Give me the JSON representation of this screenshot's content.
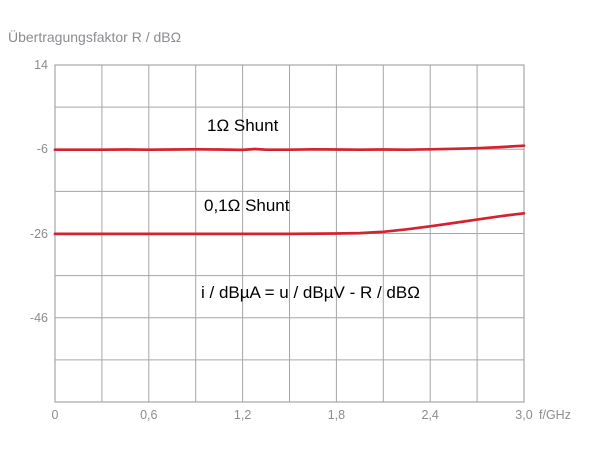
{
  "chart_data": {
    "type": "line",
    "title": "Übertragungsfaktor R / dBΩ",
    "xlabel": "f/GHz",
    "ylabel": "Übertragungsfaktor R / dBΩ",
    "xlim": [
      0,
      3.0
    ],
    "ylim": [
      -66,
      14
    ],
    "grid": true,
    "x_grid_step": 0.3,
    "y_grid_step": 10,
    "xticks": [
      {
        "v": 0,
        "label": "0"
      },
      {
        "v": 0.6,
        "label": "0,6"
      },
      {
        "v": 1.2,
        "label": "1,2"
      },
      {
        "v": 1.8,
        "label": "1,8"
      },
      {
        "v": 2.4,
        "label": "2,4"
      },
      {
        "v": 3.0,
        "label": "3,0"
      }
    ],
    "yticks": [
      {
        "v": 14,
        "label": "14"
      },
      {
        "v": -6,
        "label": "-6"
      },
      {
        "v": -26,
        "label": "-26"
      },
      {
        "v": -46,
        "label": "-46"
      }
    ],
    "legend_position": "none (inline text labels inside plot)",
    "series": [
      {
        "name": "1Ω Shunt",
        "color": "#d42330",
        "x": [
          0.0,
          0.15,
          0.3,
          0.45,
          0.6,
          0.75,
          0.9,
          1.05,
          1.2,
          1.28,
          1.35,
          1.5,
          1.65,
          1.8,
          1.95,
          2.1,
          2.25,
          2.4,
          2.55,
          2.7,
          2.85,
          3.0
        ],
        "y": [
          -6.1,
          -6.1,
          -6.1,
          -6.05,
          -6.1,
          -6.05,
          -6.0,
          -6.05,
          -6.15,
          -5.95,
          -6.1,
          -6.1,
          -6.0,
          -6.05,
          -6.1,
          -6.05,
          -6.1,
          -6.0,
          -5.9,
          -5.75,
          -5.5,
          -5.15
        ]
      },
      {
        "name": "0,1Ω Shunt",
        "color": "#d42330",
        "x": [
          0.0,
          0.3,
          0.6,
          0.9,
          1.2,
          1.5,
          1.8,
          1.95,
          2.1,
          2.25,
          2.4,
          2.55,
          2.7,
          2.85,
          3.0
        ],
        "y": [
          -26.1,
          -26.1,
          -26.1,
          -26.1,
          -26.1,
          -26.1,
          -26.0,
          -25.9,
          -25.6,
          -25.0,
          -24.3,
          -23.5,
          -22.7,
          -21.9,
          -21.2
        ]
      }
    ],
    "annotations": [
      {
        "text": "1Ω Shunt",
        "x": 0.97,
        "y": 1.5
      },
      {
        "text": "0,1Ω Shunt",
        "x": 0.95,
        "y": -17.5
      },
      {
        "text": "i / dBµA = u / dBµV - R / dBΩ",
        "x": 0.93,
        "y": -38.0
      }
    ]
  },
  "colors": {
    "background": "#ffffff",
    "grid": "#a3a6aa",
    "plot_border": "#a3a6aa",
    "axis_text": "#8a8d90",
    "annotation_text": "#000000",
    "curve": "#d42330"
  }
}
